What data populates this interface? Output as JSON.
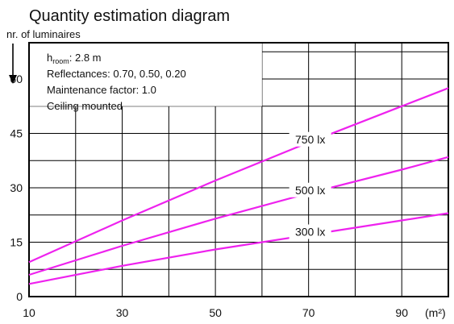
{
  "title": "Quantity estimation diagram",
  "chart_data": {
    "type": "line",
    "title": "Quantity estimation diagram",
    "ylabel": "nr. of luminaires",
    "xlabel": "(m²)",
    "xlim": [
      10,
      100
    ],
    "ylim": [
      0,
      70
    ],
    "x_ticks": [
      10,
      30,
      50,
      70,
      90
    ],
    "y_ticks": [
      0,
      15,
      30,
      45,
      60
    ],
    "grid": true,
    "info": [
      {
        "main": "h",
        "sub": "room",
        "rest": ": 2.8 m"
      },
      {
        "main": "Reflectances:  0.70, 0.50, 0.20"
      },
      {
        "main": "Maintenance factor:  1.0"
      },
      {
        "main": "Ceiling mounted"
      }
    ],
    "series": [
      {
        "name": "750 lx",
        "x": [
          10,
          30,
          50,
          70,
          90,
          100
        ],
        "values": [
          9.5,
          21,
          32,
          42.5,
          52.5,
          57.5
        ]
      },
      {
        "name": "500 lx",
        "x": [
          10,
          30,
          50,
          70,
          90,
          100
        ],
        "values": [
          6,
          14,
          21.5,
          28.5,
          35,
          38.5
        ]
      },
      {
        "name": "300 lx",
        "x": [
          10,
          30,
          50,
          70,
          90,
          100
        ],
        "values": [
          3.5,
          8.5,
          13,
          17,
          21,
          23
        ]
      }
    ]
  }
}
